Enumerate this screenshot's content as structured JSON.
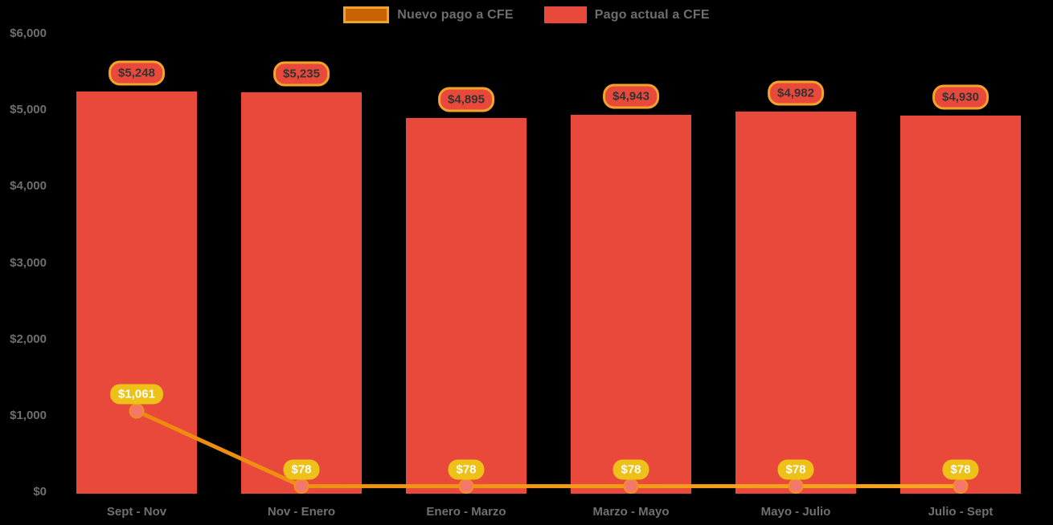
{
  "chart_data": {
    "type": "bar+line",
    "title": "",
    "categories": [
      "Sept - Nov",
      "Nov - Enero",
      "Enero - Marzo",
      "Marzo - Mayo",
      "Mayo - Julio",
      "Julio - Sept"
    ],
    "series": [
      {
        "name": "Nuevo pago a CFE",
        "type": "line",
        "values": [
          1061,
          78,
          78,
          78,
          78,
          78
        ],
        "value_labels": [
          "$1,061",
          "$78",
          "$78",
          "$78",
          "$78",
          "$78"
        ],
        "line_color_start": "#ED8A0D",
        "line_color_end": "#F8A81F",
        "point_color": "#F4766C",
        "point_stroke": "#F0921A",
        "label_bg": "#EDC117",
        "label_text_color": "#FFFFFF",
        "legend_swatch_fill": "#C96204",
        "legend_swatch_border": "#F0A22E"
      },
      {
        "name": "Pago actual a CFE",
        "type": "bar",
        "values": [
          5248,
          5235,
          4895,
          4943,
          4982,
          4930
        ],
        "value_labels": [
          "$5,248",
          "$5,235",
          "$4,895",
          "$4,943",
          "$4,982",
          "$4,930"
        ],
        "bar_color": "#E8493B",
        "label_bg": "#E8493B",
        "label_border": "#F2A42A",
        "label_text_color": "#333333"
      }
    ],
    "y_axis": {
      "range": [
        0,
        6000
      ],
      "ticks": [
        {
          "value": 0,
          "label": "$0"
        },
        {
          "value": 1000,
          "label": "$1,000"
        },
        {
          "value": 2000,
          "label": "$2,000"
        },
        {
          "value": 3000,
          "label": "$3,000"
        },
        {
          "value": 4000,
          "label": "$4,000"
        },
        {
          "value": 5000,
          "label": "$5,000"
        },
        {
          "value": 6000,
          "label": "$6,000"
        }
      ]
    },
    "grid": false,
    "legend_position": "top-center",
    "background": "#000000",
    "axis_text_color": "#6E6E6E"
  }
}
